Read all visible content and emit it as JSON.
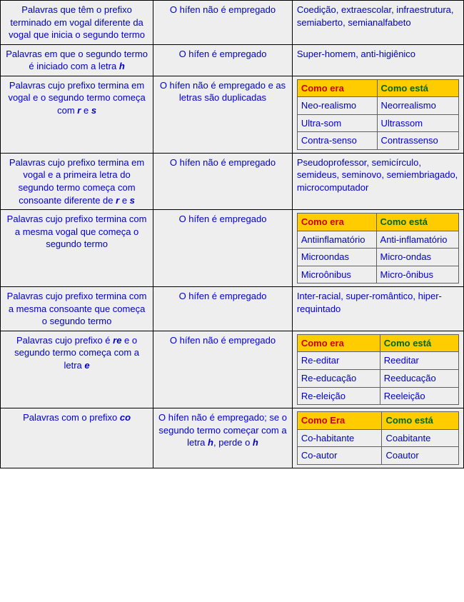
{
  "colors": {
    "cell_bg": "#eeeeee",
    "text": "#0000cc",
    "border_outer": "#000000",
    "border_inner": "#606060",
    "header_bg": "#ffcc00",
    "era_color": "#cc0000",
    "esta_color": "#006600"
  },
  "inner_headers": {
    "era": "Como era",
    "esta": "Como está",
    "era_cap": "Como Era"
  },
  "rows": {
    "r1": {
      "case_a": "Palavras que têm o prefixo terminado em vogal diferente da vogal que inicia o segundo termo",
      "rule": "O hífen não é empregado",
      "examples": "Coedição, extraescolar, infraestrutura, semiaberto, semianalfabeto"
    },
    "r2": {
      "case_a": "Palavras em que o segundo termo é iniciado com a letra ",
      "case_b": "h",
      "rule": "O hífen é empregado",
      "examples": "Super-homem, anti-higiênico"
    },
    "r3": {
      "case_a": "Palavras cujo prefixo termina em vogal e o segundo termo começa com ",
      "case_b": "r",
      "case_c": " e ",
      "case_d": "s",
      "rule": "O hífen não é empregado e as letras são duplicadas",
      "pairs": [
        {
          "old": "Neo-realismo",
          "new": "Neorrealismo"
        },
        {
          "old": "Ultra-som",
          "new": "Ultrassom"
        },
        {
          "old": "Contra-senso",
          "new": "Contrassenso"
        }
      ]
    },
    "r4": {
      "case_a": "Palavras cujo prefixo termina em vogal e a primeira letra do segundo termo começa com consoante diferente de ",
      "case_b": "r",
      "case_c": " e ",
      "case_d": "s",
      "rule": "O hífen não é empregado",
      "examples": "Pseudoprofessor, semicírculo, semideus, seminovo, semiembriagado, microcomputador"
    },
    "r5": {
      "case_a": "Palavras cujo prefixo termina com a mesma vogal que começa o segundo termo",
      "rule": "O hífen é empregado",
      "pairs": [
        {
          "old": "Antiinflamatório",
          "new": "Anti-inflamatório"
        },
        {
          "old": "Microondas",
          "new": "Micro-ondas"
        },
        {
          "old": "Microônibus",
          "new": "Micro-ônibus"
        }
      ]
    },
    "r6": {
      "case_a": "Palavras cujo prefixo termina com a mesma consoante que começa o segundo termo",
      "rule": "O hífen é empregado",
      "examples": "Inter-racial, super-romântico, hiper-requintado"
    },
    "r7": {
      "case_a": "Palavras cujo prefixo é ",
      "case_b": "re",
      "case_c": " e o segundo termo começa com a letra ",
      "case_d": "e",
      "rule": "O hífen não é empregado",
      "pairs": [
        {
          "old": "Re-editar",
          "new": "Reeditar"
        },
        {
          "old": "Re-educação",
          "new": "Reeducação"
        },
        {
          "old": "Re-eleição",
          "new": "Reeleição"
        }
      ]
    },
    "r8": {
      "case_a": "Palavras com o prefixo ",
      "case_b": "co",
      "rule_a": "O hífen não é empregado; se o segundo termo começar com a letra ",
      "rule_b": "h",
      "rule_c": ", perde o ",
      "rule_d": "h",
      "pairs": [
        {
          "old": "Co-habitante",
          "new": "Coabitante"
        },
        {
          "old": "Co-autor",
          "new": "Coautor"
        }
      ]
    }
  }
}
